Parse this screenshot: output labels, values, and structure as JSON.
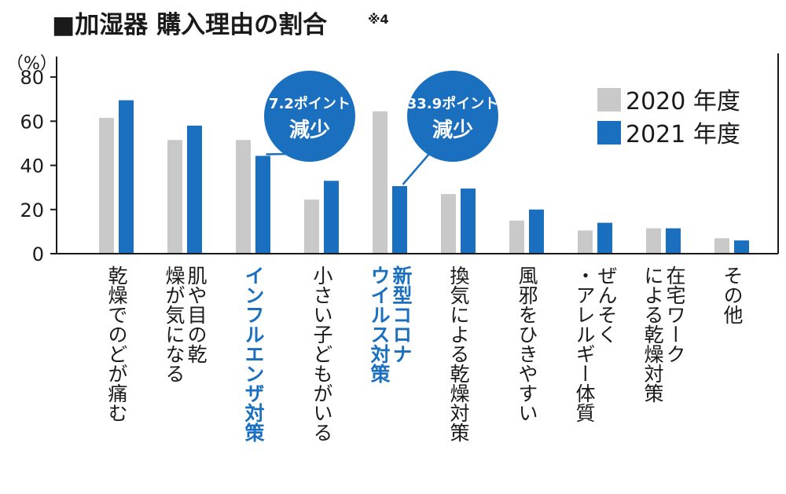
{
  "title": "■加湿器 購入理由の割合",
  "title_note": "※4",
  "unit_label": "（%）",
  "colors": {
    "2020": "#c9c9c9",
    "2021": "#1a6fbf",
    "highlight": "#1a6fbf"
  },
  "legend": [
    "2020 年度",
    "2021 年度"
  ],
  "callouts": [
    {
      "category_index": 2,
      "line1": "7.2ポイント",
      "line2": "減少"
    },
    {
      "category_index": 4,
      "line1": "33.9ポイント",
      "line2": "減少"
    }
  ],
  "chart_data": {
    "type": "bar",
    "ylim": [
      0,
      90
    ],
    "yticks": [
      0,
      20,
      40,
      60,
      80
    ],
    "categories": [
      "乾燥でのどが痛む",
      "肌や目の乾燥が気になる",
      "インフルエンザ対策",
      "小さい子どもがいる",
      "新型コロナウイルス対策",
      "換気による乾燥対策",
      "風邪をひきやすい",
      "ぜんそく・アレルギー体質",
      "在宅ワークによる乾燥対策",
      "その他"
    ],
    "highlighted_categories": [
      2,
      4
    ],
    "series": [
      {
        "name": "2020 年度",
        "values": [
          61.5,
          51.5,
          51.5,
          24.5,
          64.5,
          27,
          15,
          10.5,
          11.5,
          7
        ]
      },
      {
        "name": "2021 年度",
        "values": [
          69.5,
          58,
          44.3,
          33,
          30.6,
          29.5,
          20,
          14,
          11.5,
          6
        ]
      }
    ]
  }
}
